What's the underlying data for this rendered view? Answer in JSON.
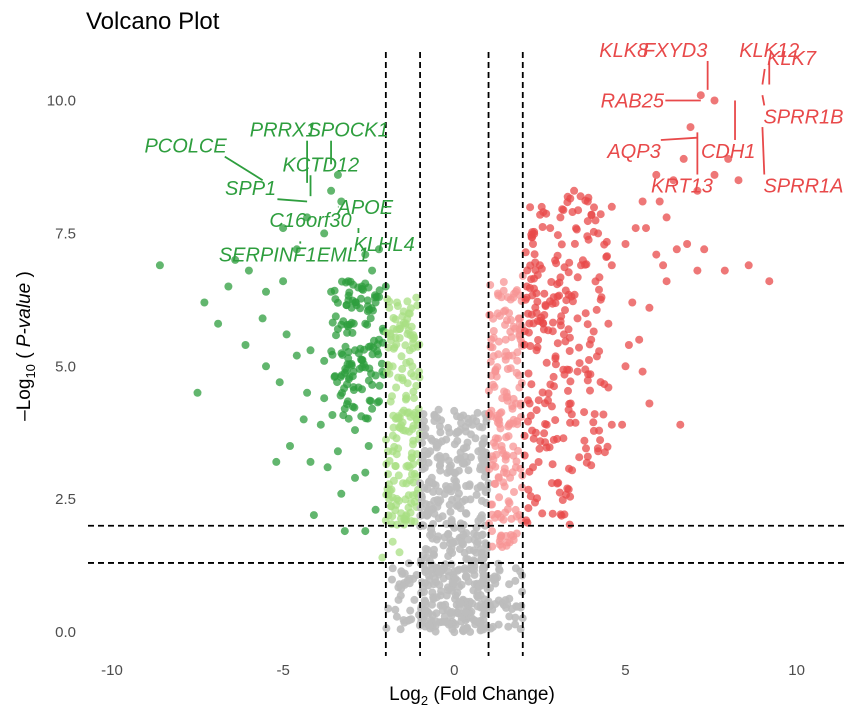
{
  "chart_data": {
    "type": "scatter",
    "title": "Volcano Plot",
    "xlabel": {
      "prefix": "Log",
      "sub": "2",
      "suffix": " (Fold Change)"
    },
    "ylabel": {
      "prefix": "–Log",
      "sub": "10",
      "suffix_plain": " ( ",
      "suffix_italic": "P-value",
      "suffix_end": " )"
    },
    "xlim": [
      -10.7,
      11.5
    ],
    "ylim": [
      -0.3,
      11.1
    ],
    "xticks": [
      -10,
      -5,
      0,
      5,
      10
    ],
    "yticks": [
      0.0,
      2.5,
      5.0,
      7.5,
      10.0
    ],
    "ytick_labels": [
      "0.0",
      "2.5",
      "5.0",
      "7.5",
      "10.0"
    ],
    "grid": false,
    "legend": "none",
    "thresholds": {
      "fc_vertical": [
        -2,
        -1,
        1,
        2
      ],
      "pval_horizontal": [
        1.3,
        2.0
      ]
    },
    "colors": {
      "down_strong": "#2e9e3e",
      "down_weak": "#a8df83",
      "up_strong": "#e8494a",
      "up_weak": "#f79494",
      "not_sig": "#bdbdbd",
      "down_label": "#2e9e3e",
      "up_label": "#e8494a"
    },
    "series": [
      {
        "group": "down_strong",
        "points": [
          [
            -8.6,
            6.9
          ],
          [
            -7.3,
            6.2
          ],
          [
            -6.9,
            5.8
          ],
          [
            -6.1,
            5.4
          ],
          [
            -5.6,
            5.9
          ],
          [
            -7.5,
            4.5
          ],
          [
            -4.9,
            5.6
          ],
          [
            -4.6,
            5.2
          ],
          [
            -4.2,
            5.3
          ],
          [
            -3.8,
            5.1
          ],
          [
            -4.3,
            4.5
          ],
          [
            -5.1,
            4.7
          ],
          [
            -3.5,
            4.8
          ],
          [
            -3.2,
            4.2
          ],
          [
            -3.9,
            3.9
          ],
          [
            -4.8,
            3.5
          ],
          [
            -5.2,
            3.2
          ],
          [
            -4.2,
            3.2
          ],
          [
            -3.4,
            3.4
          ],
          [
            -2.9,
            3.8
          ],
          [
            -2.6,
            3.0
          ],
          [
            -3.3,
            2.6
          ],
          [
            -4.1,
            2.2
          ],
          [
            -3.2,
            1.9
          ],
          [
            -2.6,
            1.9
          ],
          [
            -2.3,
            2.3
          ],
          [
            -2.8,
            4.6
          ],
          [
            -2.4,
            4.2
          ],
          [
            -2.2,
            5.5
          ],
          [
            -2.6,
            5.8
          ],
          [
            -3.0,
            6.1
          ],
          [
            -3.4,
            5.7
          ],
          [
            -3.6,
            6.4
          ],
          [
            -3.1,
            6.6
          ],
          [
            -2.7,
            6.5
          ],
          [
            -2.3,
            6.2
          ],
          [
            -2.2,
            7.2
          ],
          [
            -2.6,
            7.1
          ],
          [
            -5.0,
            6.6
          ],
          [
            -5.5,
            6.4
          ],
          [
            -6.0,
            6.8
          ],
          [
            -6.4,
            7.0
          ],
          [
            -6.6,
            6.5
          ],
          [
            -3.8,
            7.5
          ],
          [
            -4.3,
            7.8
          ],
          [
            -4.6,
            7.2
          ],
          [
            -5.0,
            7.6
          ],
          [
            -3.3,
            8.1
          ],
          [
            -3.4,
            8.6
          ],
          [
            -3.6,
            8.3
          ],
          [
            -4.4,
            4.0
          ],
          [
            -5.5,
            5.0
          ],
          [
            -2.5,
            3.5
          ],
          [
            -2.9,
            2.9
          ],
          [
            -3.7,
            3.1
          ],
          [
            -2.1,
            4.9
          ],
          [
            -2.0,
            6.5
          ],
          [
            -2.9,
            5.3
          ],
          [
            -2.4,
            6.8
          ],
          [
            -3.8,
            4.4
          ]
        ],
        "spread": [
          [
            -2.05,
            -3.6,
            4.0,
            6.6,
            120
          ]
        ]
      },
      {
        "group": "down_weak",
        "points": [
          [
            -2.0,
            2.1
          ],
          [
            -1.8,
            1.7
          ],
          [
            -1.6,
            1.5
          ],
          [
            -2.1,
            1.4
          ],
          [
            -1.9,
            2.5
          ],
          [
            -1.5,
            2.8
          ],
          [
            -1.3,
            3.1
          ],
          [
            -1.2,
            3.6
          ],
          [
            -1.1,
            4.0
          ],
          [
            -1.4,
            4.4
          ],
          [
            -1.7,
            4.6
          ],
          [
            -1.9,
            5.0
          ],
          [
            -1.3,
            5.3
          ],
          [
            -1.6,
            5.7
          ],
          [
            -1.9,
            6.1
          ],
          [
            -1.4,
            2.2
          ],
          [
            -1.1,
            2.6
          ],
          [
            -1.0,
            3.2
          ],
          [
            -1.8,
            3.4
          ],
          [
            -1.5,
            3.8
          ]
        ],
        "spread": [
          [
            -2.0,
            -1.0,
            2.0,
            6.3,
            160
          ]
        ]
      },
      {
        "group": "not_sig",
        "points": [
          [
            0.0,
            0.0
          ],
          [
            -0.2,
            0.2
          ],
          [
            0.2,
            0.2
          ],
          [
            -0.4,
            0.5
          ],
          [
            0.4,
            0.5
          ],
          [
            -0.6,
            0.9
          ],
          [
            0.6,
            0.9
          ],
          [
            -0.8,
            1.4
          ],
          [
            0.8,
            1.4
          ],
          [
            -0.9,
            2.0
          ],
          [
            0.9,
            2.0
          ],
          [
            -1.0,
            2.8
          ],
          [
            1.0,
            2.8
          ],
          [
            -1.2,
            1.0
          ],
          [
            1.2,
            1.0
          ],
          [
            -1.6,
            0.9
          ],
          [
            1.6,
            0.9
          ],
          [
            -1.8,
            1.2
          ],
          [
            1.8,
            1.2
          ],
          [
            -0.7,
            3.4
          ],
          [
            0.7,
            3.4
          ],
          [
            -0.9,
            4.1
          ],
          [
            0.9,
            4.1
          ],
          [
            -0.3,
            1.2
          ],
          [
            0.3,
            1.2
          ]
        ],
        "spread": [
          [
            -1.0,
            1.0,
            0.0,
            4.2,
            380
          ],
          [
            -2.0,
            2.0,
            0.05,
            1.3,
            140
          ]
        ]
      },
      {
        "group": "up_weak",
        "points": [
          [
            1.1,
            2.4
          ],
          [
            1.3,
            2.9
          ],
          [
            1.5,
            3.3
          ],
          [
            1.6,
            3.9
          ],
          [
            1.4,
            4.4
          ],
          [
            1.2,
            4.9
          ],
          [
            1.7,
            5.2
          ],
          [
            1.9,
            5.6
          ],
          [
            1.6,
            6.0
          ],
          [
            1.8,
            6.4
          ],
          [
            1.9,
            4.6
          ],
          [
            1.1,
            1.9
          ],
          [
            1.4,
            1.6
          ],
          [
            1.2,
            3.5
          ],
          [
            1.5,
            5.5
          ],
          [
            1.8,
            3.1
          ],
          [
            1.9,
            2.2
          ],
          [
            1.3,
            4.0
          ],
          [
            1.7,
            4.2
          ],
          [
            2.0,
            6.7
          ]
        ],
        "spread": [
          [
            1.0,
            2.0,
            1.6,
            6.6,
            160
          ]
        ]
      },
      {
        "group": "up_strong",
        "points": [
          [
            3.3,
            2.7
          ],
          [
            3.8,
            3.6
          ],
          [
            3.9,
            3.3
          ],
          [
            4.1,
            4.1
          ],
          [
            4.5,
            4.6
          ],
          [
            5.0,
            5.0
          ],
          [
            5.4,
            5.5
          ],
          [
            5.7,
            6.1
          ],
          [
            6.1,
            6.9
          ],
          [
            6.5,
            7.2
          ],
          [
            6.8,
            7.3
          ],
          [
            7.1,
            6.8
          ],
          [
            7.3,
            7.2
          ],
          [
            7.9,
            6.8
          ],
          [
            8.6,
            6.9
          ],
          [
            9.2,
            6.6
          ],
          [
            6.2,
            6.6
          ],
          [
            5.9,
            7.1
          ],
          [
            5.6,
            7.6
          ],
          [
            6.0,
            8.1
          ],
          [
            6.4,
            8.5
          ],
          [
            6.7,
            8.9
          ],
          [
            7.1,
            8.3
          ],
          [
            7.6,
            8.6
          ],
          [
            8.0,
            8.9
          ],
          [
            8.3,
            8.5
          ],
          [
            6.6,
            3.9
          ],
          [
            5.5,
            4.9
          ],
          [
            5.1,
            5.4
          ],
          [
            5.7,
            4.3
          ],
          [
            4.6,
            3.9
          ],
          [
            4.2,
            3.4
          ],
          [
            4.9,
            3.9
          ],
          [
            3.6,
            4.9
          ],
          [
            4.0,
            5.5
          ],
          [
            3.6,
            5.9
          ],
          [
            4.3,
            6.3
          ],
          [
            4.6,
            6.9
          ],
          [
            5.0,
            7.3
          ],
          [
            5.3,
            7.6
          ],
          [
            5.5,
            8.1
          ],
          [
            5.9,
            8.6
          ],
          [
            4.6,
            8.0
          ],
          [
            4.2,
            7.5
          ],
          [
            3.9,
            8.1
          ],
          [
            3.5,
            8.3
          ],
          [
            3.1,
            7.8
          ],
          [
            2.8,
            7.6
          ],
          [
            2.5,
            6.9
          ],
          [
            2.3,
            7.3
          ],
          [
            2.6,
            7.9
          ],
          [
            2.9,
            6.3
          ],
          [
            3.2,
            5.6
          ],
          [
            2.4,
            5.3
          ],
          [
            2.9,
            4.8
          ],
          [
            2.2,
            4.3
          ],
          [
            2.7,
            3.9
          ],
          [
            2.3,
            3.1
          ],
          [
            2.1,
            2.1
          ],
          [
            3.4,
            4.3
          ],
          [
            5.2,
            6.2
          ],
          [
            6.2,
            7.8
          ],
          [
            7.6,
            10.0
          ],
          [
            4.5,
            5.8
          ],
          [
            3.7,
            6.9
          ],
          [
            6.9,
            9.5
          ],
          [
            7.2,
            10.1
          ]
        ],
        "spread": [
          [
            2.05,
            4.5,
            3.0,
            8.2,
            160
          ],
          [
            2.05,
            3.4,
            2.0,
            7.0,
            60
          ]
        ]
      }
    ],
    "labels": [
      {
        "text": "PCOLCE",
        "group": "down",
        "x": -5.6,
        "y": 8.5,
        "lx": -7.85,
        "ly": 9.15
      },
      {
        "text": "PRRX1",
        "group": "down",
        "x": -4.3,
        "y": 8.45,
        "lx": -5.0,
        "ly": 9.45
      },
      {
        "text": "SPOCK1",
        "group": "down",
        "x": -3.6,
        "y": 8.8,
        "lx": -3.1,
        "ly": 9.45
      },
      {
        "text": "KCTD12",
        "group": "down",
        "x": -4.2,
        "y": 8.2,
        "lx": -3.9,
        "ly": 8.8
      },
      {
        "text": "SPP1",
        "group": "down",
        "x": -4.3,
        "y": 8.1,
        "lx": -5.95,
        "ly": 8.35
      },
      {
        "text": "APOE",
        "group": "down",
        "x": -3.4,
        "y": 8.0,
        "lx": -2.6,
        "ly": 8.0
      },
      {
        "text": "C16orf30",
        "group": "down",
        "x": -3.6,
        "y": 7.8,
        "lx": -4.2,
        "ly": 7.75
      },
      {
        "text": "KLHL4",
        "group": "down",
        "x": -2.8,
        "y": 7.6,
        "lx": -2.05,
        "ly": 7.3
      },
      {
        "text": "SERPINF1",
        "group": "down",
        "x": -4.5,
        "y": 7.35,
        "lx": -5.45,
        "ly": 7.1
      },
      {
        "text": "EML1",
        "group": "down",
        "x": -2.5,
        "y": 7.15,
        "lx": -3.25,
        "ly": 7.1
      },
      {
        "text": "KLK8",
        "group": "up",
        "x": 5.5,
        "y": 10.8,
        "lx": 4.95,
        "ly": 10.95
      },
      {
        "text": "FXYD3",
        "group": "up",
        "x": 7.4,
        "y": 10.2,
        "lx": 6.45,
        "ly": 10.95
      },
      {
        "text": "KLK12",
        "group": "up",
        "x": 9.2,
        "y": 10.3,
        "lx": 9.2,
        "ly": 10.95
      },
      {
        "text": "KLK7",
        "group": "up",
        "x": 9.0,
        "y": 10.3,
        "lx": 9.85,
        "ly": 10.8
      },
      {
        "text": "RAB25",
        "group": "up",
        "x": 7.2,
        "y": 10.0,
        "lx": 5.2,
        "ly": 10.0
      },
      {
        "text": "SPRR1B",
        "group": "up",
        "x": 9.0,
        "y": 10.1,
        "lx": 10.2,
        "ly": 9.7
      },
      {
        "text": "AQP3",
        "group": "up",
        "x": 7.1,
        "y": 9.3,
        "lx": 5.25,
        "ly": 9.05
      },
      {
        "text": "CDH1",
        "group": "up",
        "x": 8.2,
        "y": 10.0,
        "lx": 8.0,
        "ly": 9.05
      },
      {
        "text": "KRT13",
        "group": "up",
        "x": 7.1,
        "y": 9.4,
        "lx": 6.65,
        "ly": 8.4
      },
      {
        "text": "SPRR1A",
        "group": "up",
        "x": 9.0,
        "y": 9.5,
        "lx": 10.2,
        "ly": 8.4
      }
    ]
  }
}
